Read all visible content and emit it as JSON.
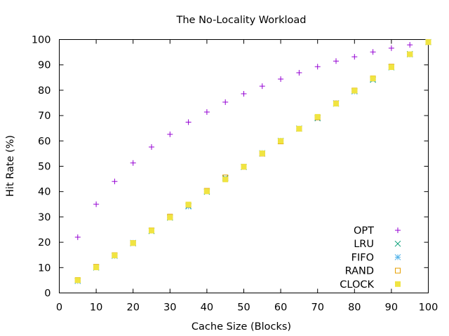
{
  "chart_data": {
    "type": "scatter",
    "title": "The No-Locality Workload",
    "xlabel": "Cache Size (Blocks)",
    "ylabel": "Hit Rate (%)",
    "xlim": [
      0,
      100
    ],
    "ylim": [
      0,
      100
    ],
    "xticks": [
      0,
      10,
      20,
      30,
      40,
      50,
      60,
      70,
      80,
      90,
      100
    ],
    "yticks": [
      0,
      10,
      20,
      30,
      40,
      50,
      60,
      70,
      80,
      90,
      100
    ],
    "grid": false,
    "legend_position": "bottom-right",
    "x": [
      5,
      10,
      15,
      20,
      25,
      30,
      35,
      40,
      45,
      50,
      55,
      60,
      65,
      70,
      75,
      80,
      85,
      90,
      95,
      100
    ],
    "series": [
      {
        "name": "OPT",
        "marker": "plus",
        "color": "#9400d3",
        "values": [
          22.0,
          35.0,
          44.0,
          51.3,
          57.6,
          62.6,
          67.4,
          71.4,
          75.3,
          78.6,
          81.6,
          84.4,
          86.9,
          89.3,
          91.5,
          93.2,
          95.1,
          96.6,
          97.9,
          99.0
        ]
      },
      {
        "name": "LRU",
        "marker": "cross",
        "color": "#009e73",
        "values": [
          4.8,
          10.0,
          14.7,
          19.6,
          24.4,
          29.7,
          34.3,
          39.9,
          45.4,
          49.7,
          55.0,
          59.9,
          64.9,
          68.9,
          74.7,
          79.7,
          84.1,
          89.0,
          94.3,
          99.0
        ]
      },
      {
        "name": "FIFO",
        "marker": "asterisk",
        "color": "#56b4e9",
        "values": [
          4.7,
          10.2,
          14.6,
          19.8,
          24.6,
          29.9,
          34.1,
          40.2,
          45.1,
          49.8,
          55.2,
          60.1,
          64.8,
          69.2,
          74.9,
          79.5,
          84.4,
          89.2,
          94.1,
          99.0
        ]
      },
      {
        "name": "RAND",
        "marker": "open-square",
        "color": "#e69f00",
        "values": [
          5.1,
          10.3,
          14.9,
          19.7,
          24.7,
          30.1,
          34.8,
          40.3,
          45.6,
          49.8,
          55.0,
          59.8,
          64.8,
          69.3,
          74.8,
          79.9,
          84.7,
          89.3,
          94.2,
          99.0
        ]
      },
      {
        "name": "CLOCK",
        "marker": "filled-square",
        "color": "#f0e442",
        "values": [
          5.0,
          10.1,
          14.8,
          19.7,
          24.6,
          29.8,
          34.9,
          40.1,
          44.8,
          49.8,
          55.1,
          60.0,
          64.8,
          69.5,
          74.7,
          79.8,
          84.6,
          89.1,
          94.2,
          99.0
        ]
      }
    ]
  }
}
